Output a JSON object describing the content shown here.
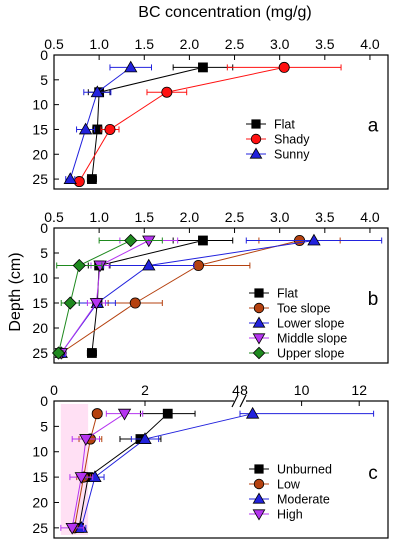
{
  "title": "BC concentration (mg/g)",
  "ylabel": "Depth (cm)",
  "colors": {
    "black": "#000000",
    "red": "#ff1111",
    "blue": "#2222dd",
    "brown": "#b5410f",
    "magenta": "#b534f0",
    "green": "#1f8a1f",
    "pink_band": "#ffd0ee"
  },
  "chart_data": [
    {
      "type": "line",
      "panel_label": "a",
      "x_axis_title": "BC concentration (mg/g)",
      "ylabel": "Depth (cm)",
      "xlim": [
        0.5,
        4.2
      ],
      "ylim": [
        0,
        27
      ],
      "y_inverted": true,
      "x_ticks": [
        "0.5",
        "1.0",
        "1.5",
        "2.0",
        "2.5",
        "3.0",
        "3.5",
        "4.0"
      ],
      "y_ticks": [
        "0",
        "5",
        "10",
        "15",
        "20",
        "25"
      ],
      "legend_position": "right",
      "series": [
        {
          "name": "Flat",
          "marker": "square",
          "color": "#000000",
          "points": [
            {
              "x": 2.15,
              "y": 2.5,
              "err": 0.33
            },
            {
              "x": 1.0,
              "y": 7.5,
              "err": 0.12
            },
            {
              "x": 0.98,
              "y": 15,
              "err": 0.05
            },
            {
              "x": 0.92,
              "y": 25,
              "err": 0.05
            }
          ]
        },
        {
          "name": "Shady",
          "marker": "circle",
          "color": "#ff1111",
          "points": [
            {
              "x": 3.05,
              "y": 2.5,
              "err": 0.63
            },
            {
              "x": 1.75,
              "y": 7.5,
              "err": 0.22
            },
            {
              "x": 1.12,
              "y": 15,
              "err": 0.1
            },
            {
              "x": 0.78,
              "y": 25.5,
              "err": 0.05
            }
          ]
        },
        {
          "name": "Sunny",
          "marker": "triangle",
          "color": "#2222dd",
          "points": [
            {
              "x": 1.35,
              "y": 2.5,
              "err": 0.23
            },
            {
              "x": 0.98,
              "y": 7.5,
              "err": 0.15
            },
            {
              "x": 0.85,
              "y": 15,
              "err": 0.1
            },
            {
              "x": 0.68,
              "y": 25,
              "err": 0.05
            }
          ]
        }
      ]
    },
    {
      "type": "line",
      "panel_label": "b",
      "xlim": [
        0.5,
        4.2
      ],
      "ylim": [
        0,
        27
      ],
      "y_inverted": true,
      "x_ticks": [
        "0.5",
        "1.0",
        "1.5",
        "2.0",
        "2.5",
        "3.0",
        "3.5",
        "4.0"
      ],
      "y_ticks": [
        "0",
        "5",
        "10",
        "15",
        "20",
        "25"
      ],
      "legend_position": "right",
      "series": [
        {
          "name": "Flat",
          "marker": "square",
          "color": "#000000",
          "points": [
            {
              "x": 2.15,
              "y": 2.5,
              "err": 0.33
            },
            {
              "x": 1.0,
              "y": 7.5,
              "err": 0.12
            },
            {
              "x": 0.98,
              "y": 15,
              "err": 0.05
            },
            {
              "x": 0.92,
              "y": 25,
              "err": 0.05
            }
          ]
        },
        {
          "name": "Toe slope",
          "marker": "circle",
          "color": "#b5410f",
          "points": [
            {
              "x": 3.22,
              "y": 2.5,
              "err": 0.45
            },
            {
              "x": 2.1,
              "y": 7.5,
              "err": 0.57
            },
            {
              "x": 1.4,
              "y": 15,
              "err": 0.3
            },
            {
              "x": 0.58,
              "y": 25,
              "err": 0.05
            }
          ]
        },
        {
          "name": "Lower slope",
          "marker": "triangle",
          "color": "#2222dd",
          "points": [
            {
              "x": 3.38,
              "y": 2.5,
              "err": 0.75
            },
            {
              "x": 1.55,
              "y": 7.5,
              "err": 0.5
            },
            {
              "x": 0.98,
              "y": 15,
              "err": 0.2
            },
            {
              "x": 0.58,
              "y": 25,
              "err": 0.05
            }
          ]
        },
        {
          "name": "Middle slope",
          "marker": "triangle-down",
          "color": "#b534f0",
          "points": [
            {
              "x": 1.55,
              "y": 2.5,
              "err": 0.32
            },
            {
              "x": 1.01,
              "y": 7.5,
              "err": 0.1
            },
            {
              "x": 0.97,
              "y": 15,
              "err": 0.1
            },
            {
              "x": 0.58,
              "y": 25,
              "err": 0.05
            }
          ]
        },
        {
          "name": "Upper slope",
          "marker": "diamond",
          "color": "#1f8a1f",
          "points": [
            {
              "x": 1.35,
              "y": 2.5,
              "err": 0.35
            },
            {
              "x": 0.78,
              "y": 7.5,
              "err": 0.25
            },
            {
              "x": 0.68,
              "y": 15,
              "err": 0.1
            },
            {
              "x": 0.55,
              "y": 25,
              "err": 0.05
            }
          ]
        }
      ]
    },
    {
      "type": "line",
      "panel_label": "c",
      "x_axis_break": {
        "from": 4,
        "to": 8
      },
      "x_ticks": [
        "0",
        "2",
        "4",
        "8",
        "10",
        "12"
      ],
      "y_ticks": [
        "0",
        "5",
        "10",
        "15",
        "20",
        "25"
      ],
      "ylim": [
        0,
        27
      ],
      "y_inverted": true,
      "legend_position": "right",
      "series": [
        {
          "name": "Unburned",
          "marker": "square",
          "color": "#000000",
          "points": [
            {
              "x": 2.5,
              "y": 2.5,
              "err": 0.6
            },
            {
              "x": 1.9,
              "y": 7.5,
              "err": 0.45
            },
            {
              "x": 0.75,
              "y": 15,
              "err": 0.15
            },
            {
              "x": 0.55,
              "y": 25,
              "err": 0.1
            }
          ]
        },
        {
          "name": "Low",
          "marker": "circle",
          "color": "#b5410f",
          "points": [
            {
              "x": 0.95,
              "y": 2.5,
              "err": 0.1
            },
            {
              "x": 0.8,
              "y": 7.5,
              "err": 0.25
            },
            {
              "x": 0.65,
              "y": 15,
              "err": 0.15
            },
            {
              "x": 0.45,
              "y": 25,
              "err": 0.1
            }
          ]
        },
        {
          "name": "Moderate",
          "marker": "triangle",
          "color": "#2222dd",
          "points": [
            {
              "x": 8.3,
              "y": 2.5,
              "err": 4.2
            },
            {
              "x": 2.0,
              "y": 7.5,
              "err": 0.3
            },
            {
              "x": 0.9,
              "y": 15,
              "err": 0.2
            },
            {
              "x": 0.6,
              "y": 25,
              "err": 0.1
            }
          ]
        },
        {
          "name": "High",
          "marker": "triangle-down",
          "color": "#b534f0",
          "points": [
            {
              "x": 1.55,
              "y": 2.5,
              "err": 0.4
            },
            {
              "x": 0.7,
              "y": 7.5,
              "err": 0.3
            },
            {
              "x": 0.6,
              "y": 15,
              "err": 0.25
            },
            {
              "x": 0.4,
              "y": 25,
              "err": 0.25
            }
          ]
        }
      ]
    }
  ]
}
